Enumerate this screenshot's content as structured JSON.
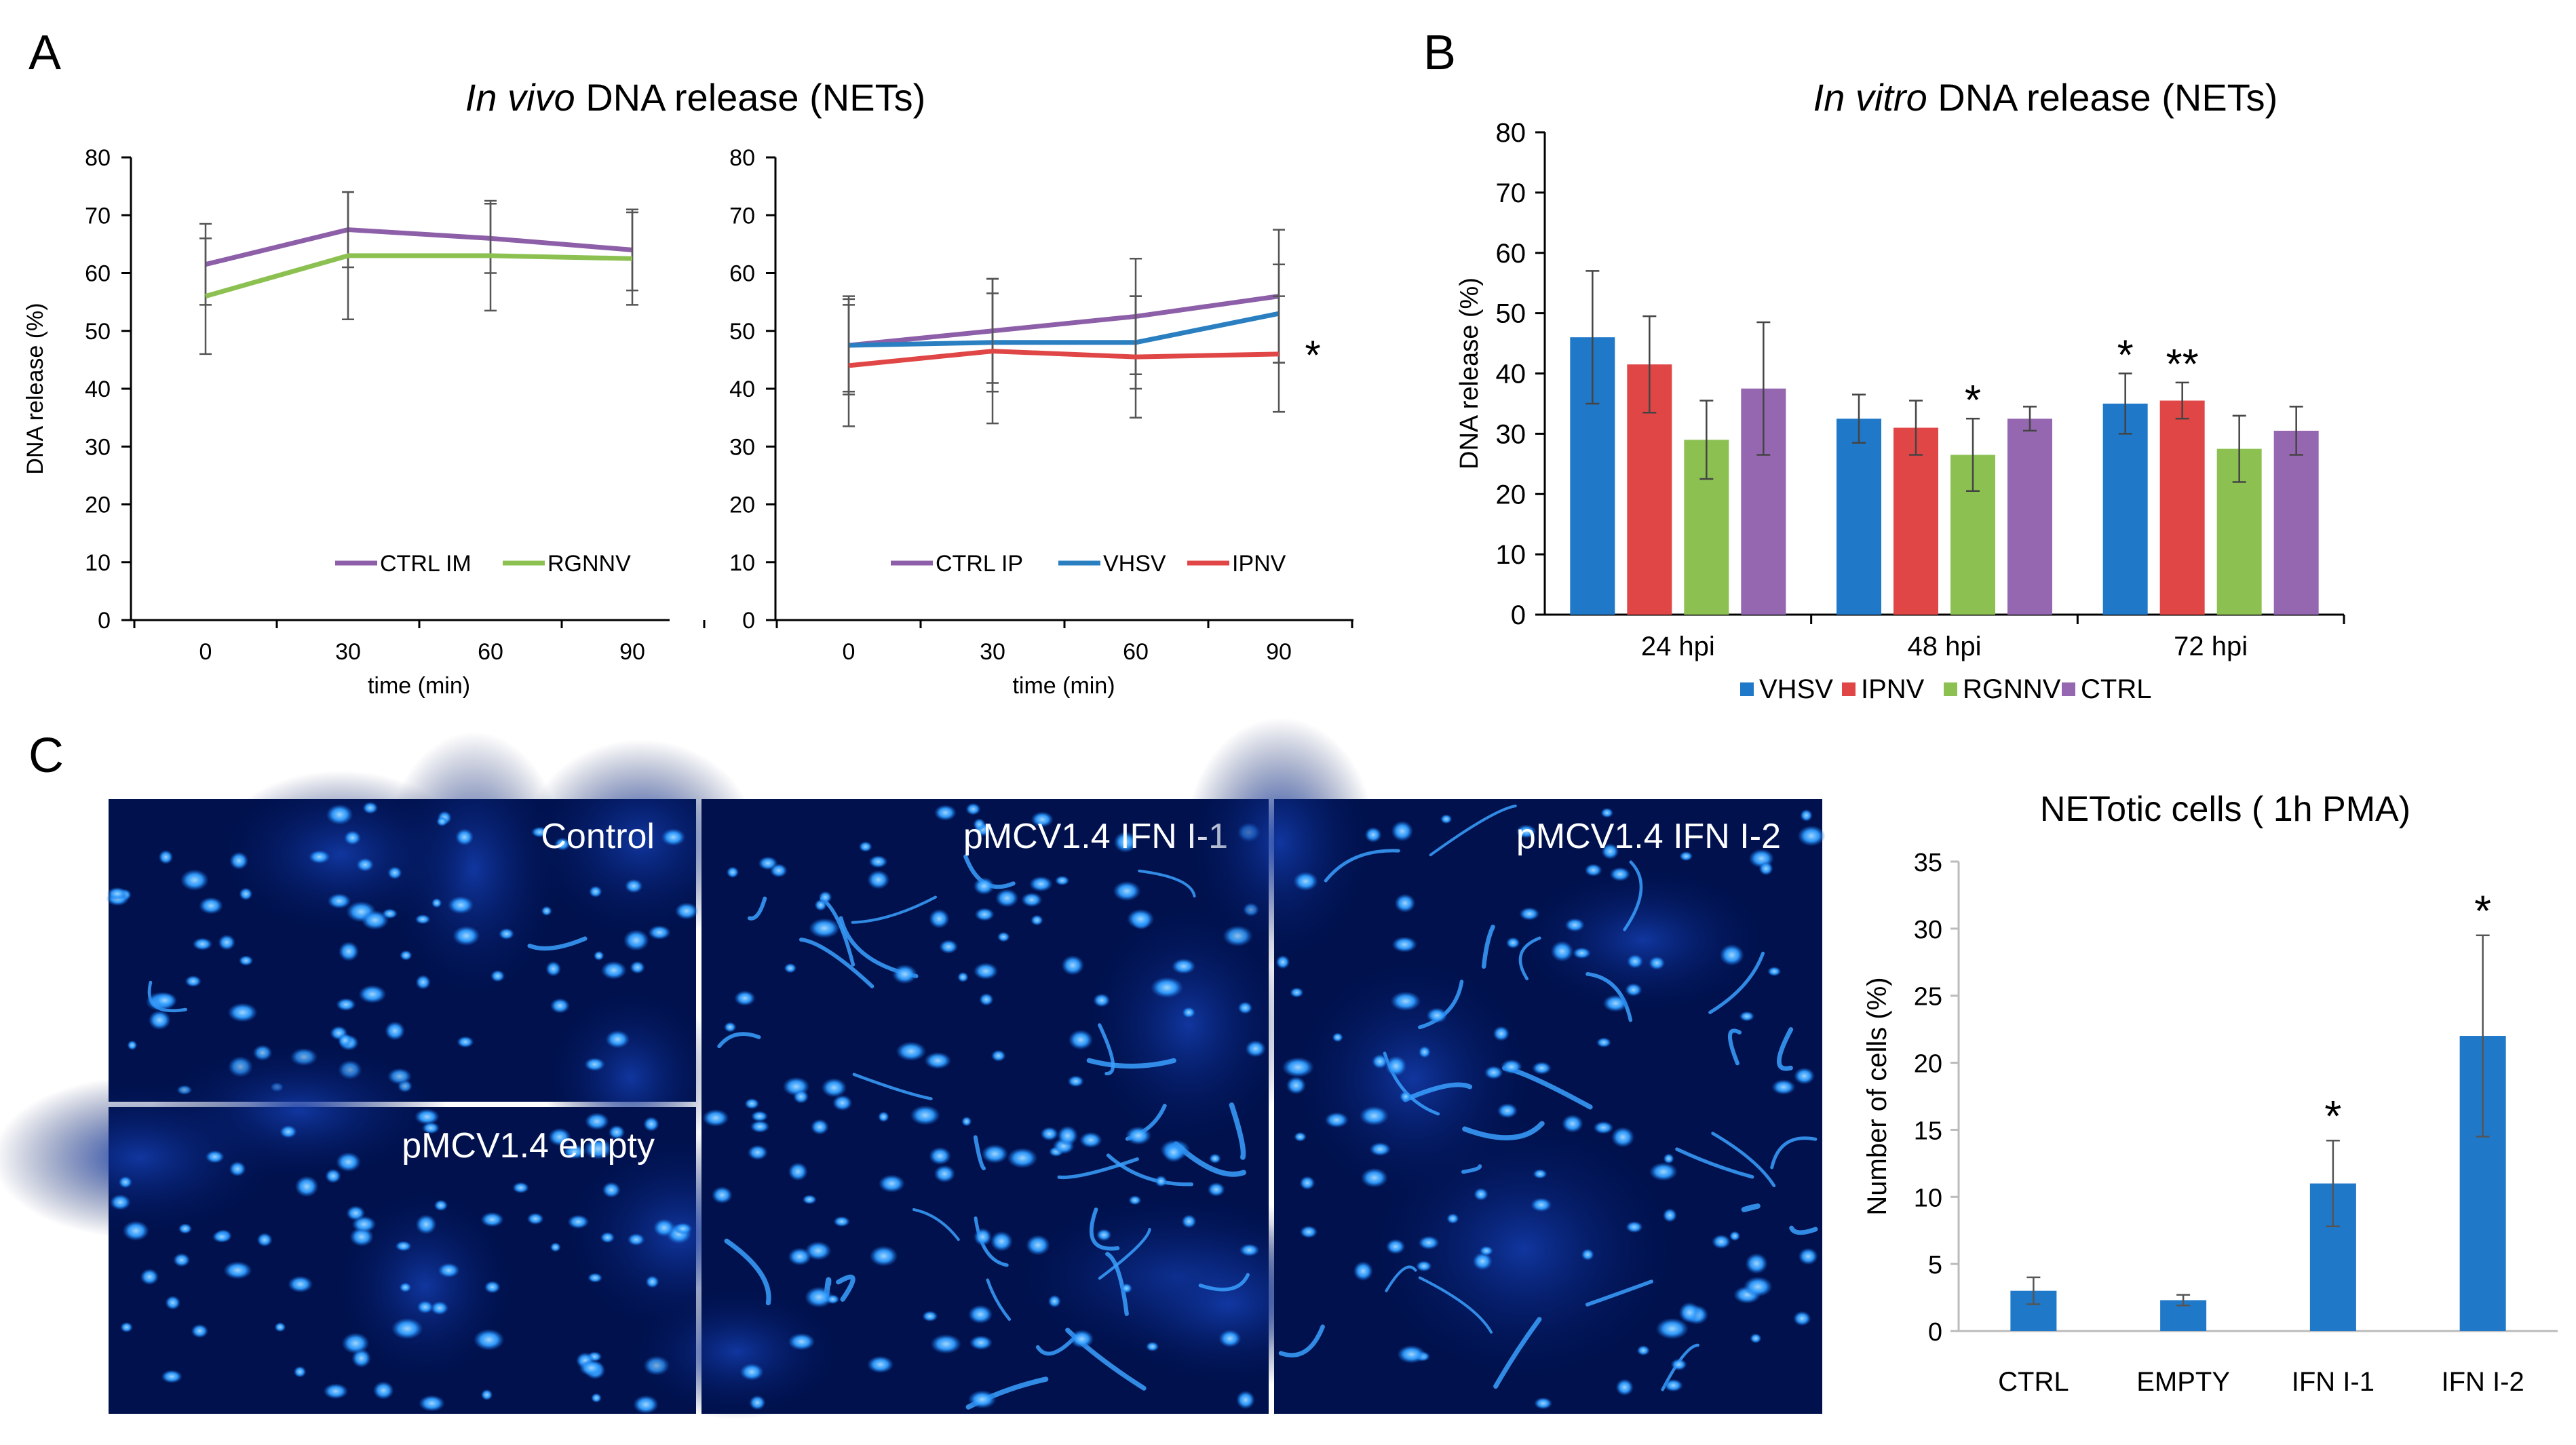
{
  "panels": {
    "A": "A",
    "B": "B",
    "C": "C"
  },
  "colors": {
    "purple": "#8d5fa8",
    "green": "#8cc152",
    "blue": "#2a7fc1",
    "red": "#e04646",
    "bar_blue": "#1f78c8",
    "bar_red": "#e04646",
    "bar_green": "#8cc152",
    "bar_purple": "#9467b0",
    "micro_bg": "#00114d",
    "cell": "#2d9bff"
  },
  "chart_data": [
    {
      "id": "A-left",
      "type": "line",
      "title_italic": "In vivo",
      "title_rest": " DNA release (NETs)",
      "xlabel": "time (min)",
      "ylabel": "DNA release (%)",
      "ylim": [
        0,
        80
      ],
      "yticks": [
        "0",
        "10",
        "20",
        "30",
        "40",
        "50",
        "60",
        "70",
        "80"
      ],
      "x": [
        "0",
        "30",
        "60",
        "90"
      ],
      "series": [
        {
          "name": "CTRL IM",
          "color": "#8d5fa8",
          "values": [
            61.5,
            67.5,
            66,
            64
          ],
          "err": [
            7,
            6.5,
            6,
            7
          ]
        },
        {
          "name": "RGNNV",
          "color": "#8cc152",
          "values": [
            56,
            63,
            63,
            62.5
          ],
          "err": [
            10,
            11,
            9.5,
            8
          ]
        }
      ],
      "legend": "bottom-right"
    },
    {
      "id": "A-right",
      "type": "line",
      "xlabel": "time (min)",
      "ylim": [
        0,
        80
      ],
      "yticks": [
        "0",
        "10",
        "20",
        "30",
        "40",
        "50",
        "60",
        "70",
        "80"
      ],
      "x": [
        "0",
        "30",
        "60",
        "90"
      ],
      "series": [
        {
          "name": "CTRL IP",
          "color": "#8d5fa8",
          "values": [
            47.5,
            50,
            52.5,
            56
          ],
          "err": [
            8.5,
            9,
            10,
            11.5
          ]
        },
        {
          "name": "VHSV",
          "color": "#2a7fc1",
          "values": [
            47.5,
            48,
            48,
            53
          ],
          "err": [
            8,
            8.5,
            8,
            8.5
          ]
        },
        {
          "name": "IPNV",
          "color": "#e04646",
          "values": [
            44,
            46.5,
            45.5,
            46
          ],
          "err": [
            10.5,
            12.5,
            10.5,
            10
          ]
        }
      ],
      "annotations": [
        {
          "text": "*",
          "series": "IPNV",
          "x": "90"
        }
      ],
      "legend": "bottom-right"
    },
    {
      "id": "B",
      "type": "bar",
      "title_italic": "In vitro",
      "title_rest": " DNA release (NETs)",
      "ylabel": "DNA release (%)",
      "ylim": [
        0,
        80
      ],
      "yticks": [
        "0",
        "10",
        "20",
        "30",
        "40",
        "50",
        "60",
        "70",
        "80"
      ],
      "categories": [
        "24 hpi",
        "48 hpi",
        "72 hpi"
      ],
      "series": [
        {
          "name": "VHSV",
          "color": "#1f78c8",
          "values": [
            46,
            32.5,
            35
          ],
          "err": [
            11,
            4,
            5
          ]
        },
        {
          "name": "IPNV",
          "color": "#e04646",
          "values": [
            41.5,
            31,
            35.5
          ],
          "err": [
            8,
            4.5,
            3
          ]
        },
        {
          "name": "RGNNV",
          "color": "#8cc152",
          "values": [
            29,
            26.5,
            27.5
          ],
          "err": [
            6.5,
            6,
            5.5
          ]
        },
        {
          "name": "CTRL",
          "color": "#9467b0",
          "values": [
            37.5,
            32.5,
            30.5
          ],
          "err": [
            11,
            2,
            4
          ]
        }
      ],
      "annotations": [
        {
          "text": "*",
          "category": "48 hpi",
          "series": "RGNNV"
        },
        {
          "text": "*",
          "category": "72 hpi",
          "series": "VHSV"
        },
        {
          "text": "**",
          "category": "72 hpi",
          "series": "IPNV"
        }
      ],
      "legend": "bottom"
    },
    {
      "id": "C-bar",
      "type": "bar",
      "title": "NETotic cells ( 1h PMA)",
      "ylabel": "Number of cells (%)",
      "ylim": [
        0,
        35
      ],
      "yticks": [
        "0",
        "5",
        "10",
        "15",
        "20",
        "25",
        "30",
        "35"
      ],
      "categories": [
        "CTRL",
        "EMPTY",
        "IFN I-1",
        "IFN I-2"
      ],
      "values": [
        3,
        2.3,
        11,
        22
      ],
      "err": [
        1,
        0.4,
        3.2,
        7.5
      ],
      "annotations": [
        {
          "text": "*",
          "category": "IFN I-1"
        },
        {
          "text": "*",
          "category": "IFN I-2"
        }
      ],
      "color": "#1f78c8"
    }
  ],
  "micrographs": [
    {
      "label": "Control"
    },
    {
      "label": "pMCV1.4 empty"
    },
    {
      "label": "pMCV1.4 IFN I-1"
    },
    {
      "label": "pMCV1.4 IFN I-2"
    }
  ]
}
